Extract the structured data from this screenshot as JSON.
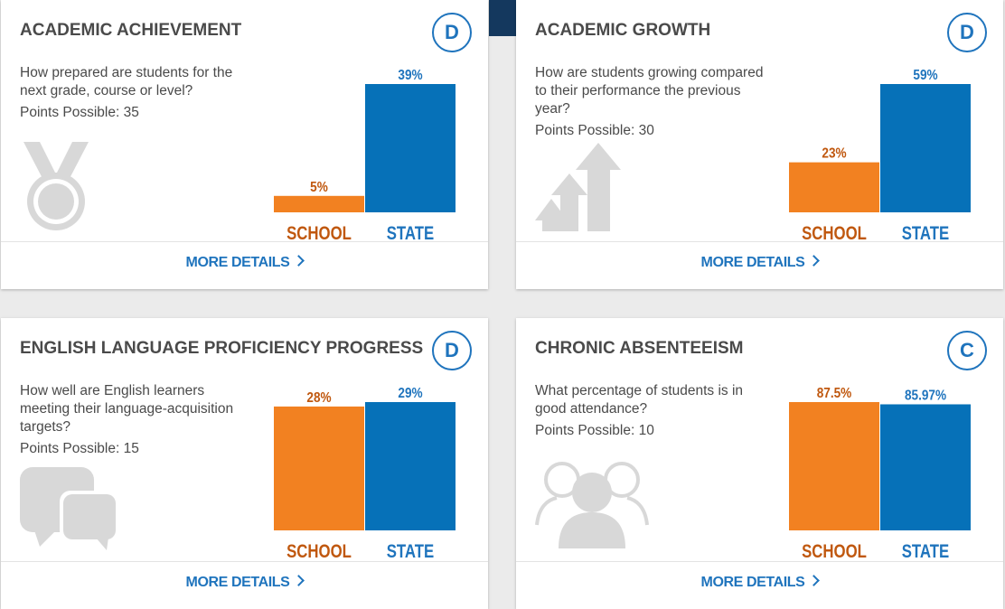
{
  "colors": {
    "school": "#f28121",
    "state": "#0671b8",
    "school_label": "#c0580f",
    "state_label": "#1f74bd"
  },
  "cards": [
    {
      "title": "ACADEMIC ACHIEVEMENT",
      "grade": "D",
      "question": "How prepared are students for the next grade, course or level?",
      "points": "Points Possible: 35",
      "icon": "medal-icon",
      "more": "MORE DETAILS",
      "chart_data": {
        "type": "bar",
        "categories": [
          "SCHOOL",
          "STATE"
        ],
        "values": [
          5,
          39
        ],
        "value_labels": [
          "5%",
          "39%"
        ],
        "ylim": [
          0,
          39
        ]
      }
    },
    {
      "title": "ACADEMIC GROWTH",
      "grade": "D",
      "question": "How are students growing compared to their performance the previous year?",
      "points": "Points Possible: 30",
      "icon": "growth-arrows-icon",
      "more": "MORE DETAILS",
      "chart_data": {
        "type": "bar",
        "categories": [
          "SCHOOL",
          "STATE"
        ],
        "values": [
          23,
          59
        ],
        "value_labels": [
          "23%",
          "59%"
        ],
        "ylim": [
          0,
          59
        ]
      }
    },
    {
      "title": "ENGLISH LANGUAGE PROFICIENCY PROGRESS",
      "grade": "D",
      "question": "How well are English learners meeting their language-acquisition targets?",
      "points": "Points Possible: 15",
      "icon": "speech-bubbles-icon",
      "more": "MORE DETAILS",
      "chart_data": {
        "type": "bar",
        "categories": [
          "SCHOOL",
          "STATE"
        ],
        "values": [
          28,
          29
        ],
        "value_labels": [
          "28%",
          "29%"
        ],
        "ylim": [
          0,
          29
        ]
      }
    },
    {
      "title": "CHRONIC ABSENTEEISM",
      "grade": "C",
      "question": "What percentage of students is in good attendance?",
      "points": "Points Possible: 10",
      "icon": "people-group-icon",
      "more": "MORE DETAILS",
      "chart_data": {
        "type": "bar",
        "categories": [
          "SCHOOL",
          "STATE"
        ],
        "values": [
          87.5,
          85.97
        ],
        "value_labels": [
          "87.5%",
          "85.97%"
        ],
        "ylim": [
          0,
          87.5
        ]
      }
    }
  ]
}
